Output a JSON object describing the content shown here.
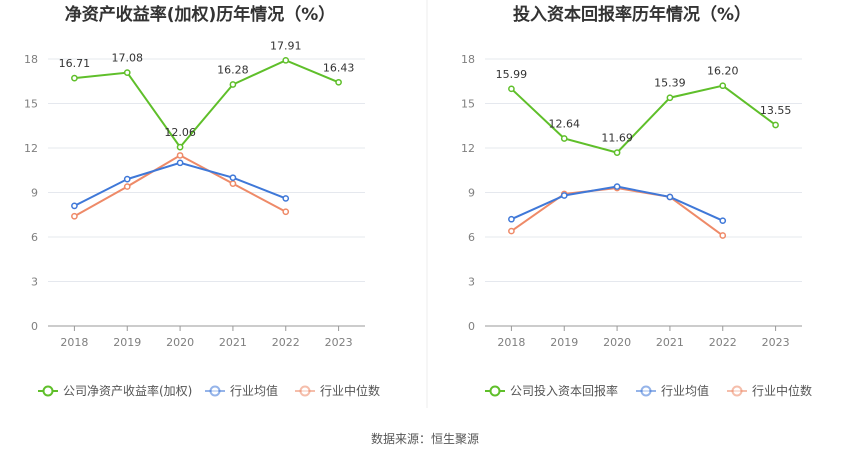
{
  "source": "数据来源：恒生聚源",
  "colors": {
    "company": "#5fbf2a",
    "avg": "#3f78d8",
    "median": "#ee8a68",
    "grid": "#e5e8ee",
    "axis": "#999999",
    "divider": "#eeeeee"
  },
  "chart_data": [
    {
      "type": "line",
      "title": "净资产收益率(加权)历年情况（%）",
      "categories": [
        "2018",
        "2019",
        "2020",
        "2021",
        "2022",
        "2023"
      ],
      "ylim": [
        0,
        18
      ],
      "yticks": [
        0,
        3,
        6,
        9,
        12,
        15,
        18
      ],
      "grid": true,
      "legend_position": "bottom",
      "series": [
        {
          "name": "公司净资产收益率(加权)",
          "values": [
            16.71,
            17.08,
            12.06,
            16.28,
            17.91,
            16.43
          ],
          "labeled": true,
          "color_key": "company"
        },
        {
          "name": "行业均值",
          "values": [
            8.1,
            9.9,
            11.0,
            10.0,
            8.6,
            null
          ],
          "labeled": false,
          "color_key": "avg"
        },
        {
          "name": "行业中位数",
          "values": [
            7.4,
            9.4,
            11.5,
            9.6,
            7.7,
            null
          ],
          "labeled": false,
          "color_key": "median"
        }
      ]
    },
    {
      "type": "line",
      "title": "投入资本回报率历年情况（%）",
      "categories": [
        "2018",
        "2019",
        "2020",
        "2021",
        "2022",
        "2023"
      ],
      "ylim": [
        0,
        18
      ],
      "yticks": [
        0,
        3,
        6,
        9,
        12,
        15,
        18
      ],
      "grid": true,
      "legend_position": "bottom",
      "series": [
        {
          "name": "公司投入资本回报率",
          "values": [
            15.99,
            12.64,
            11.69,
            15.39,
            16.2,
            13.55
          ],
          "labeled": true,
          "color_key": "company"
        },
        {
          "name": "行业均值",
          "values": [
            7.2,
            8.8,
            9.4,
            8.7,
            7.1,
            null
          ],
          "labeled": false,
          "color_key": "avg"
        },
        {
          "name": "行业中位数",
          "values": [
            6.4,
            8.9,
            9.3,
            8.7,
            6.1,
            null
          ],
          "labeled": false,
          "color_key": "median"
        }
      ]
    }
  ]
}
